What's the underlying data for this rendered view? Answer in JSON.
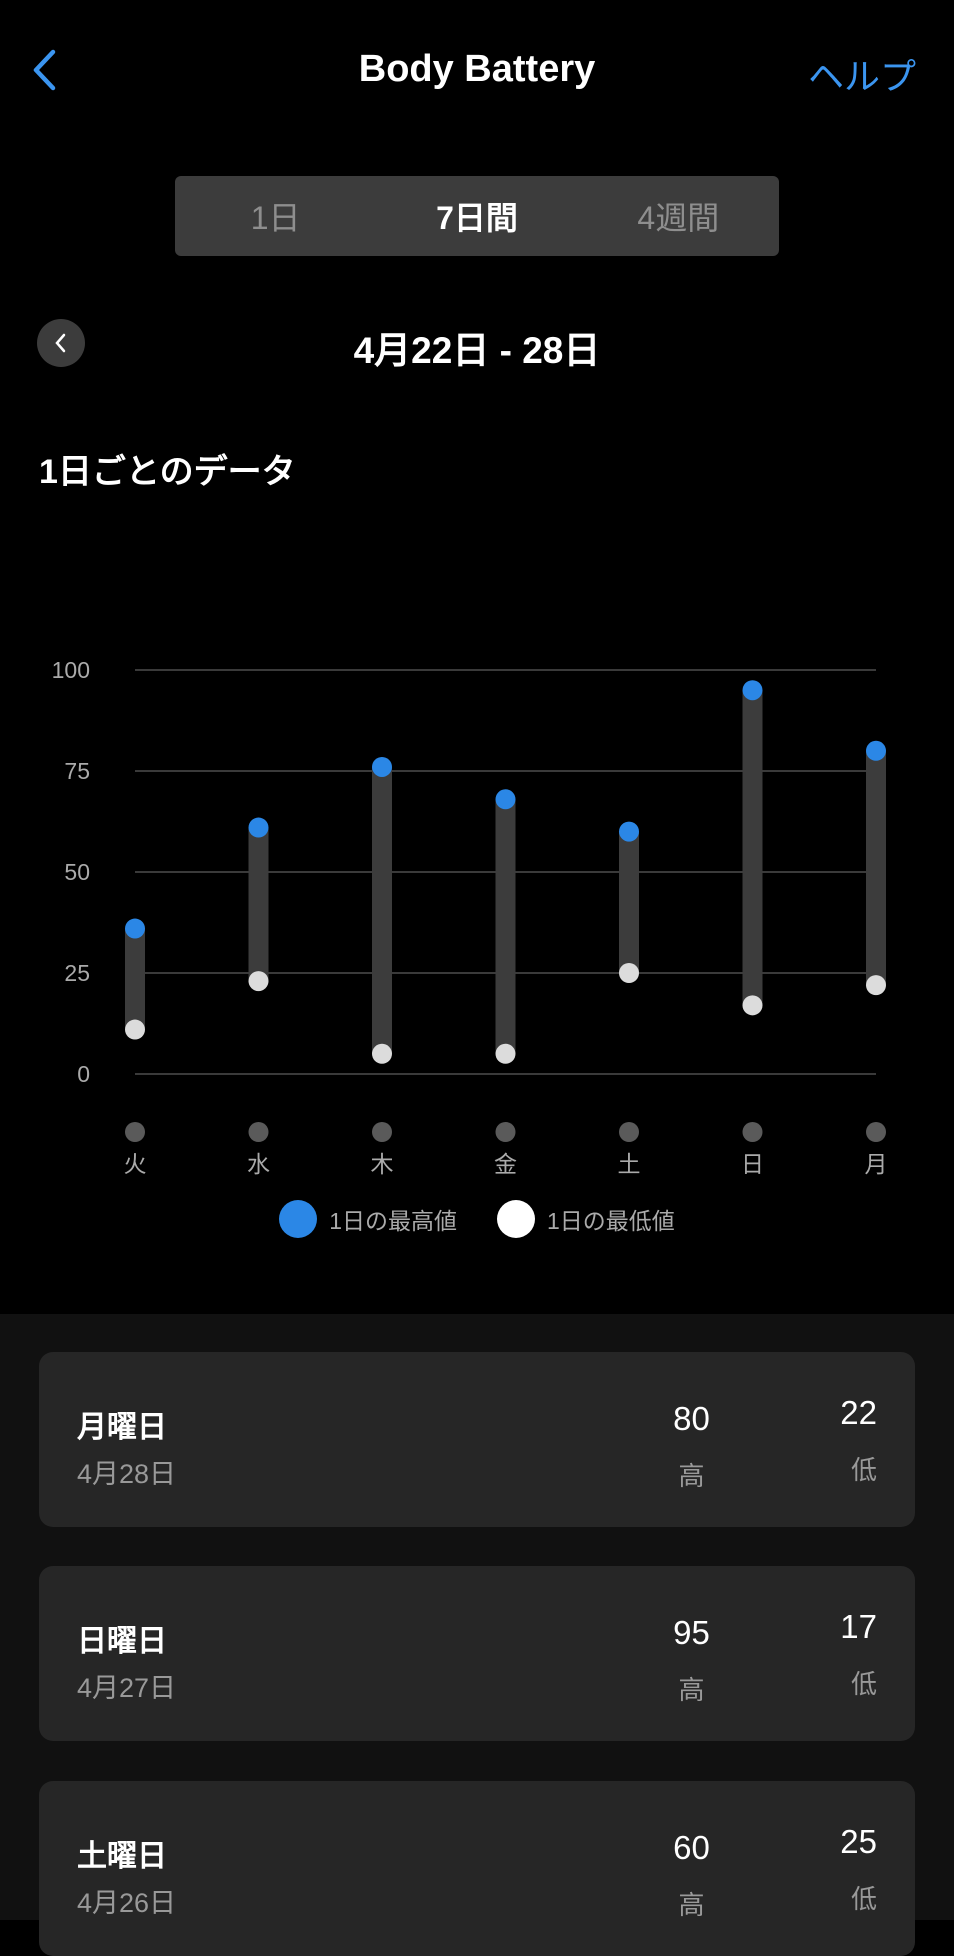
{
  "header": {
    "title": "Body Battery",
    "help_label": "ヘルプ",
    "back_icon": "chevron-left-icon"
  },
  "segments": [
    {
      "label": "1日",
      "active": false
    },
    {
      "label": "7日間",
      "active": true
    },
    {
      "label": "4週間",
      "active": false
    }
  ],
  "date_range": "4月22日 - 28日",
  "section_title": "1日ごとのデータ",
  "colors": {
    "accent": "#3b95f0",
    "high": "#2b87e6",
    "low": "#dcdcdc",
    "bar": "#3c3c3c"
  },
  "chart_data": {
    "type": "range-bar",
    "categories": [
      "火",
      "水",
      "木",
      "金",
      "土",
      "日",
      "月"
    ],
    "series": [
      {
        "name": "1日の最高値",
        "values": [
          36,
          61,
          76,
          68,
          60,
          95,
          80
        ]
      },
      {
        "name": "1日の最低値",
        "values": [
          11,
          23,
          5,
          5,
          25,
          17,
          22
        ]
      }
    ],
    "yticks": [
      0,
      25,
      50,
      75,
      100
    ],
    "ylim": [
      0,
      100
    ],
    "grid": true,
    "legend": "bottom"
  },
  "legend": {
    "high": "1日の最高値",
    "low": "1日の最低値"
  },
  "days": [
    {
      "name": "月曜日",
      "date": "4月28日",
      "high": "80",
      "high_label": "高",
      "low": "22",
      "low_label": "低"
    },
    {
      "name": "日曜日",
      "date": "4月27日",
      "high": "95",
      "high_label": "高",
      "low": "17",
      "low_label": "低"
    },
    {
      "name": "土曜日",
      "date": "4月26日",
      "high": "60",
      "high_label": "高",
      "low": "25",
      "low_label": "低"
    }
  ]
}
